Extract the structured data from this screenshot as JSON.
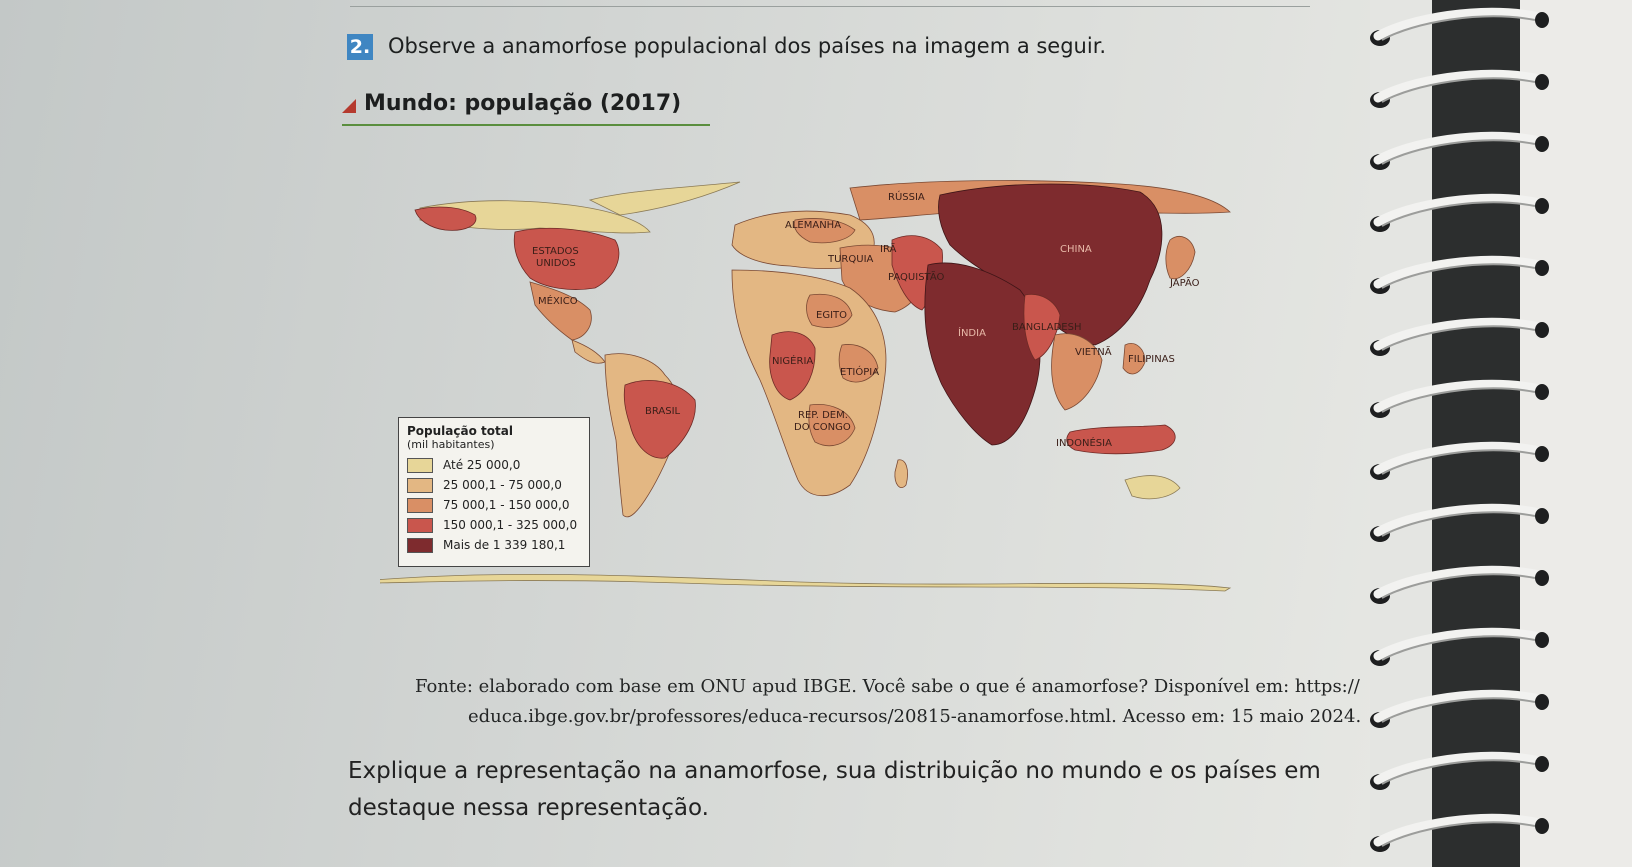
{
  "question": {
    "number": "2.",
    "text": "Observe a anamorfose populacional dos países na imagem a seguir."
  },
  "map": {
    "title": "Mundo: população (2017)",
    "country_labels": {
      "russia": "RÚSSIA",
      "china": "CHINA",
      "japan": "JAPÃO",
      "germany": "ALEMANHA",
      "turkey": "TURQUIA",
      "iran": "IRÃ",
      "pakistan": "PAQUISTÃO",
      "india": "ÍNDIA",
      "bangladesh": "BANGLADESH",
      "vietnam": "VIETNÃ",
      "philippines": "FILIPINAS",
      "indonesia": "INDONÉSIA",
      "egypt": "EGITO",
      "nigeria": "NIGÉRIA",
      "ethiopia": "ETIÓPIA",
      "drc_line1": "REP. DEM.",
      "drc_line2": "DO CONGO",
      "usa_line1": "ESTADOS",
      "usa_line2": "UNIDOS",
      "mexico": "MÉXICO",
      "brazil": "BRASIL"
    },
    "legend": {
      "title": "População total",
      "subtitle": "(mil habitantes)",
      "items": [
        {
          "label": "Até 25 000,0",
          "color": "#e7d698"
        },
        {
          "label": "25 000,1 - 75 000,0",
          "color": "#e3b783"
        },
        {
          "label": "75 000,1 - 150 000,0",
          "color": "#d98f65"
        },
        {
          "label": "150 000,1 - 325 000,0",
          "color": "#c9564d"
        },
        {
          "label": "Mais de 1 339 180,1",
          "color": "#7e2b2e"
        }
      ]
    }
  },
  "source": {
    "line1": "Fonte: elaborado com base em ONU apud IBGE. Você sabe o que é anamorfose? Disponível em: https://",
    "line2": "educa.ibge.gov.br/professores/educa-recursos/20815-anamorfose.html. Acesso em: 15 maio 2024."
  },
  "prompt": {
    "text": "Explique a representação na anamorfose, sua distribuição no mundo e os países em destaque nessa representação."
  }
}
